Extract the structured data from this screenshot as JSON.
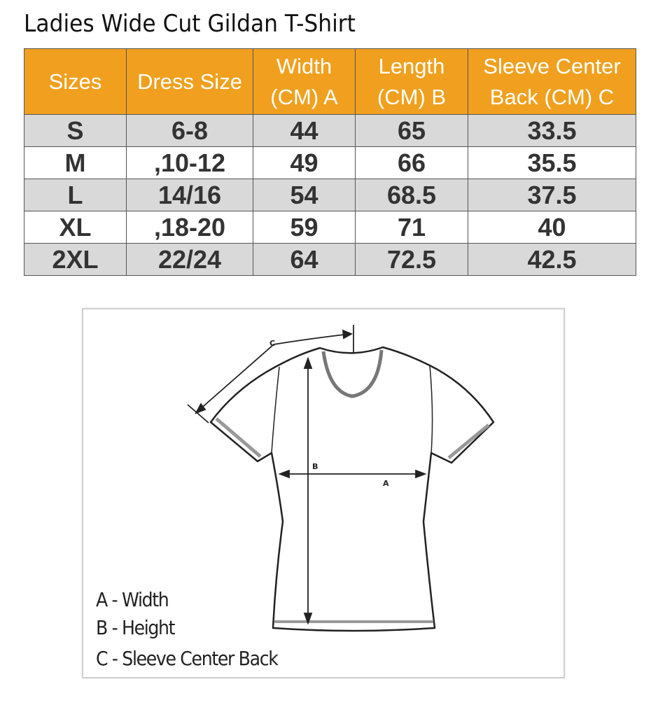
{
  "title": "Ladies Wide Cut Gildan T-Shirt",
  "colors": {
    "header_bg": "#f0a01e",
    "header_text": "#ffffff",
    "row_shade": "#d9d9d9"
  },
  "table": {
    "headers": [
      "Sizes",
      "Dress Size",
      "Width\n(CM) A",
      "Length\n(CM) B",
      "Sleeve Center\nBack (CM) C"
    ],
    "rows": [
      [
        "S",
        "6-8",
        "44",
        "65",
        "33.5"
      ],
      [
        "M",
        ",10-12",
        "49",
        "66",
        "35.5"
      ],
      [
        "L",
        "14/16",
        "54",
        "68.5",
        "37.5"
      ],
      [
        "XL",
        ",18-20",
        "59",
        "71",
        "40"
      ],
      [
        "2XL",
        "22/24",
        "64",
        "72.5",
        "42.5"
      ]
    ]
  },
  "diagram": {
    "labels": {
      "a": "A",
      "b": "B",
      "c": "C"
    },
    "legend": [
      "A - Width",
      "B - Height",
      "C - Sleeve Center Back"
    ]
  }
}
